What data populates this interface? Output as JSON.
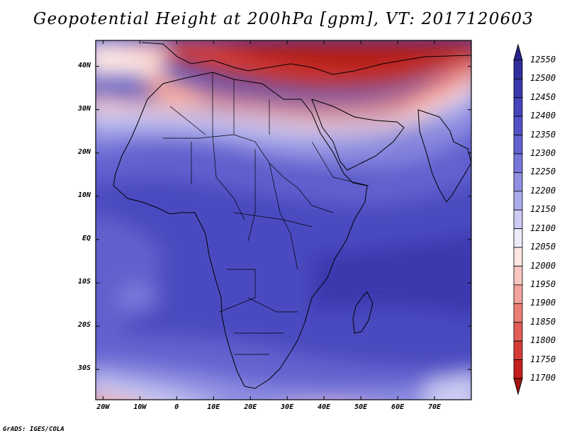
{
  "title": "Geopotential Height at 200hPa [gpm], VT: 2017120603",
  "credit": "GrADS: IGES/COLA",
  "map": {
    "lon_range": [
      -22,
      80
    ],
    "lat_range": [
      -37,
      46
    ],
    "lat_ticks": [
      {
        "value": 40,
        "label": "40N"
      },
      {
        "value": 30,
        "label": "30N"
      },
      {
        "value": 20,
        "label": "20N"
      },
      {
        "value": 10,
        "label": "10N"
      },
      {
        "value": 0,
        "label": "EQ"
      },
      {
        "value": -10,
        "label": "10S"
      },
      {
        "value": -20,
        "label": "20S"
      },
      {
        "value": -30,
        "label": "30S"
      }
    ],
    "lon_ticks": [
      {
        "value": -20,
        "label": "20W"
      },
      {
        "value": -10,
        "label": "10W"
      },
      {
        "value": 0,
        "label": "0"
      },
      {
        "value": 10,
        "label": "10E"
      },
      {
        "value": 20,
        "label": "20E"
      },
      {
        "value": 30,
        "label": "30E"
      },
      {
        "value": 40,
        "label": "40E"
      },
      {
        "value": 50,
        "label": "50E"
      },
      {
        "value": 60,
        "label": "60E"
      },
      {
        "value": 70,
        "label": "70E"
      }
    ]
  },
  "colorbar": {
    "levels": [
      "12550",
      "12500",
      "12450",
      "12400",
      "12350",
      "12300",
      "12250",
      "12200",
      "12150",
      "12100",
      "12050",
      "12000",
      "11950",
      "11900",
      "11850",
      "11800",
      "11750",
      "11700"
    ],
    "colors": [
      "#26238c",
      "#2f2e9c",
      "#3a38ad",
      "#4444bb",
      "#5151c6",
      "#6262d0",
      "#7777da",
      "#9090e3",
      "#acacec",
      "#cbcbf3",
      "#ecebfa",
      "#fde6e3",
      "#f8c6c0",
      "#f2a49c",
      "#ea7f77",
      "#e15d56",
      "#d53c37",
      "#c41f1c",
      "#a51612"
    ]
  }
}
